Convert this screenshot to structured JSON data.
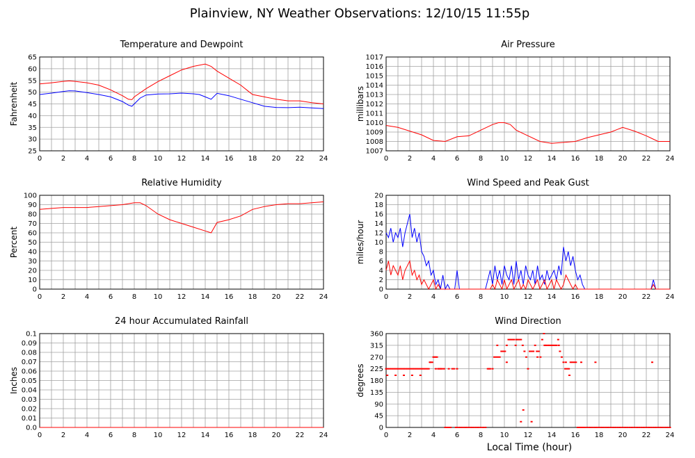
{
  "title": "Plainview, NY Weather Observations: 12/10/15 11:55p",
  "xlabel": "Local Time (hour)",
  "x_ticks": [
    "0",
    "2",
    "4",
    "6",
    "8",
    "10",
    "12",
    "14",
    "16",
    "18",
    "20",
    "22",
    "24"
  ],
  "colors": {
    "red": "#ff0000",
    "blue": "#0000ff",
    "grid": "#a0a0a0",
    "axis": "#000000"
  },
  "chart_data": [
    {
      "type": "line",
      "title": "Temperature and Dewpoint",
      "ylabel": "Fahrenheit",
      "xlim": [
        0,
        24
      ],
      "ylim": [
        25,
        65
      ],
      "grid": true,
      "y_ticks": [
        "25",
        "30",
        "35",
        "40",
        "45",
        "50",
        "55",
        "60",
        "65"
      ],
      "series": [
        {
          "color": "#ff0000",
          "x": [
            0,
            1,
            2,
            2.5,
            3,
            4,
            5,
            6,
            7,
            7.5,
            7.8,
            8,
            9,
            10,
            11,
            12,
            13,
            14,
            14.5,
            15,
            16,
            17,
            17.5,
            18,
            19,
            20,
            21,
            22,
            23,
            24
          ],
          "y": [
            53.5,
            54,
            54.6,
            54.8,
            54.6,
            54,
            53,
            51,
            48.5,
            47,
            46.8,
            48,
            51.5,
            54.5,
            57,
            59.5,
            61,
            62,
            61,
            59,
            56,
            53,
            51,
            49,
            48,
            47,
            46.3,
            46.3,
            45.5,
            45
          ]
        },
        {
          "color": "#0000ff",
          "x": [
            0,
            1,
            2,
            2.5,
            3,
            4,
            5,
            6,
            7,
            7.5,
            7.8,
            8,
            8.5,
            9,
            10,
            11,
            12,
            13,
            13.5,
            14,
            14.5,
            15,
            15.5,
            16,
            17,
            18,
            19,
            20,
            21,
            22,
            23,
            24
          ],
          "y": [
            49,
            49.6,
            50.3,
            50.6,
            50.5,
            49.8,
            49,
            48,
            46,
            44.5,
            44,
            45,
            47.5,
            48.8,
            49.2,
            49.3,
            49.6,
            49.3,
            49,
            48,
            47,
            49.5,
            49,
            48.5,
            47,
            45.5,
            44,
            43.5,
            43.4,
            43.6,
            43.3,
            43
          ]
        }
      ]
    },
    {
      "type": "line",
      "title": "Air Pressure",
      "ylabel": "millibars",
      "xlim": [
        0,
        24
      ],
      "ylim": [
        1007,
        1017
      ],
      "grid": true,
      "y_ticks": [
        "1007",
        "1008",
        "1009",
        "1010",
        "1011",
        "1012",
        "1013",
        "1014",
        "1015",
        "1016",
        "1017"
      ],
      "series": [
        {
          "color": "#ff0000",
          "x": [
            0,
            1,
            2,
            3,
            4,
            5,
            6,
            7,
            8,
            9,
            9.5,
            10,
            10.5,
            11,
            12,
            13,
            14,
            15,
            16,
            17,
            18,
            19,
            20,
            21,
            22,
            22.5,
            23,
            24
          ],
          "y": [
            1009.7,
            1009.5,
            1009.1,
            1008.7,
            1008.1,
            1008,
            1008.5,
            1008.6,
            1009.2,
            1009.8,
            1010,
            1010,
            1009.8,
            1009.2,
            1008.6,
            1008,
            1007.8,
            1007.9,
            1008,
            1008.4,
            1008.7,
            1009,
            1009.5,
            1009.1,
            1008.6,
            1008.3,
            1008,
            1008
          ]
        }
      ]
    },
    {
      "type": "line",
      "title": "Relative Humidity",
      "ylabel": "Percent",
      "xlim": [
        0,
        24
      ],
      "ylim": [
        0,
        100
      ],
      "grid": true,
      "y_ticks": [
        "0",
        "10",
        "20",
        "30",
        "40",
        "50",
        "60",
        "70",
        "80",
        "90",
        "100"
      ],
      "series": [
        {
          "color": "#ff0000",
          "x": [
            0,
            1,
            2,
            3,
            4,
            5,
            6,
            7,
            8,
            8.5,
            9,
            10,
            11,
            12,
            13,
            14,
            14.5,
            15,
            16,
            17,
            18,
            19,
            20,
            21,
            22,
            23,
            24
          ],
          "y": [
            85,
            86,
            87,
            87,
            87,
            88,
            89,
            90,
            92,
            92,
            89,
            80,
            74,
            70,
            66,
            62,
            60,
            71,
            74,
            78,
            85,
            88,
            90,
            91,
            91,
            92,
            93
          ]
        }
      ]
    },
    {
      "type": "line",
      "title": "Wind Speed and Peak Gust",
      "ylabel": "miles/hour",
      "xlim": [
        0,
        24
      ],
      "ylim": [
        0,
        20
      ],
      "grid": true,
      "y_ticks": [
        "0",
        "2",
        "4",
        "6",
        "8",
        "10",
        "12",
        "14",
        "16",
        "18",
        "20"
      ],
      "series": [
        {
          "color": "#0000ff",
          "x": [
            0,
            0.2,
            0.4,
            0.6,
            0.8,
            1,
            1.2,
            1.4,
            1.6,
            1.8,
            2,
            2.2,
            2.4,
            2.6,
            2.8,
            3,
            3.2,
            3.4,
            3.6,
            3.8,
            4,
            4.2,
            4.4,
            4.6,
            4.8,
            5,
            5.2,
            5.4,
            5.6,
            5.8,
            6,
            6.2,
            8.4,
            8.6,
            8.8,
            9,
            9.2,
            9.4,
            9.6,
            9.8,
            10,
            10.2,
            10.4,
            10.6,
            10.8,
            11,
            11.2,
            11.4,
            11.6,
            11.8,
            12,
            12.2,
            12.4,
            12.6,
            12.8,
            13,
            13.2,
            13.4,
            13.6,
            13.8,
            14,
            14.2,
            14.4,
            14.6,
            14.8,
            15,
            15.2,
            15.4,
            15.6,
            15.8,
            16,
            16.2,
            16.4,
            16.6,
            16.8,
            17,
            22.4,
            22.6,
            22.8,
            24
          ],
          "y": [
            12,
            11,
            13,
            10,
            12,
            11,
            13,
            9,
            12,
            14,
            16,
            11,
            13,
            10,
            12,
            8,
            7,
            5,
            6,
            3,
            4,
            1,
            2,
            0,
            3,
            0,
            1,
            0,
            0,
            0,
            4,
            0,
            0,
            2,
            4,
            1,
            5,
            2,
            4,
            1,
            5,
            3,
            2,
            5,
            1,
            6,
            2,
            4,
            1,
            5,
            3,
            2,
            4,
            1,
            5,
            2,
            3,
            1,
            4,
            2,
            3,
            4,
            2,
            5,
            3,
            9,
            6,
            8,
            5,
            7,
            4,
            2,
            3,
            1,
            0,
            0,
            0,
            2,
            0,
            0
          ]
        },
        {
          "color": "#ff0000",
          "x": [
            0,
            0.2,
            0.4,
            0.6,
            0.8,
            1,
            1.2,
            1.4,
            1.6,
            1.8,
            2,
            2.2,
            2.4,
            2.6,
            2.8,
            3,
            3.2,
            3.4,
            3.6,
            3.8,
            4,
            4.2,
            4.4,
            4.6,
            4.8,
            5,
            8.8,
            9,
            9.2,
            9.4,
            9.6,
            9.8,
            10,
            10.2,
            10.4,
            10.6,
            10.8,
            11,
            11.2,
            11.4,
            11.6,
            11.8,
            12,
            12.2,
            12.4,
            12.6,
            12.8,
            13,
            13.2,
            13.4,
            13.6,
            13.8,
            14,
            14.2,
            14.4,
            14.6,
            14.8,
            15,
            15.2,
            15.4,
            15.6,
            15.8,
            16,
            16.2,
            16.4,
            16.6,
            17,
            22.4,
            22.6,
            22.8,
            24
          ],
          "y": [
            4,
            6,
            3,
            5,
            4,
            3,
            5,
            2,
            4,
            5,
            6,
            3,
            4,
            2,
            3,
            1,
            2,
            1,
            0,
            1,
            2,
            0,
            1,
            0,
            0,
            0,
            0,
            1,
            0,
            2,
            1,
            0,
            2,
            0,
            1,
            2,
            0,
            1,
            2,
            0,
            1,
            0,
            2,
            1,
            0,
            1,
            2,
            0,
            1,
            2,
            0,
            1,
            2,
            0,
            2,
            1,
            0,
            1,
            3,
            2,
            1,
            0,
            1,
            0,
            0,
            0,
            0,
            0,
            1,
            0,
            0
          ]
        }
      ]
    },
    {
      "type": "line",
      "title": "24 hour Accumulated Rainfall",
      "ylabel": "Inches",
      "xlim": [
        0,
        24
      ],
      "ylim": [
        0,
        0.1
      ],
      "grid": true,
      "y_ticks": [
        "0.0",
        "0.01",
        "0.02",
        "0.03",
        "0.04",
        "0.05",
        "0.06",
        "0.07",
        "0.08",
        "0.09",
        "0.1"
      ],
      "series": [
        {
          "color": "#ff0000",
          "x": [
            0,
            24
          ],
          "y": [
            0,
            0
          ]
        }
      ]
    },
    {
      "type": "scatter",
      "title": "Wind Direction",
      "ylabel": "degrees",
      "xlim": [
        0,
        24
      ],
      "ylim": [
        0,
        360
      ],
      "grid": true,
      "y_ticks": [
        "0",
        "45",
        "90",
        "135",
        "180",
        "225",
        "270",
        "315",
        "360"
      ],
      "series": [
        {
          "color": "#ff0000",
          "x": [
            0,
            0.15,
            0.3,
            0.45,
            0.6,
            0.75,
            0.9,
            1.05,
            1.2,
            1.35,
            1.5,
            1.65,
            1.8,
            1.95,
            2.1,
            2.25,
            2.4,
            2.55,
            2.7,
            2.85,
            3,
            3.15,
            3.3,
            3.45,
            3.6,
            3.75,
            3.9,
            4,
            4.1,
            4.2,
            4.3,
            4.45,
            4.6,
            4.75,
            4.9,
            5.0,
            5.15,
            5.3,
            5.45,
            5.6,
            5.75,
            5.9,
            6,
            6.2,
            6.4,
            6.6,
            6.8,
            7,
            7.2,
            7.4,
            7.6,
            7.8,
            8,
            8.2,
            8.4,
            8.6,
            8.8,
            9,
            9.15,
            9.3,
            9.45,
            9.6,
            9.75,
            9.9,
            10.05,
            10.2,
            10.35,
            10.5,
            10.65,
            10.8,
            10.95,
            11.1,
            11.25,
            11.4,
            11.55,
            11.7,
            11.85,
            12,
            12.15,
            12.3,
            12.45,
            12.6,
            12.75,
            12.9,
            13.05,
            13.2,
            13.35,
            13.5,
            13.65,
            13.8,
            13.95,
            14.1,
            14.25,
            14.4,
            14.55,
            14.7,
            14.85,
            15,
            15.15,
            15.3,
            15.45,
            15.6,
            15.75,
            15.9,
            16.05,
            16.2,
            16.35,
            16.5,
            16.65,
            16.8,
            17,
            17.2,
            17.4,
            17.6,
            17.8,
            18,
            18.2,
            18.4,
            18.6,
            18.8,
            19,
            19.2,
            19.4,
            19.6,
            19.8,
            20,
            20.2,
            20.4,
            20.6,
            20.8,
            21,
            21.2,
            21.4,
            21.6,
            21.8,
            22,
            22.2,
            22.4,
            22.6,
            22.8,
            23,
            23.2,
            23.4,
            23.6,
            23.8,
            24,
            0.1,
            0.8,
            1.5,
            2.2,
            2.9,
            3.7,
            4.2,
            4.4,
            4.6,
            5.3,
            6.0,
            8.7,
            9.4,
            10.2,
            11.0,
            11.4,
            11.6,
            12.3,
            12.8,
            13.4,
            14.6,
            15.2,
            15.5,
            16.5,
            17.7,
            22.5
          ],
          "y": [
            225,
            225,
            225,
            225,
            225,
            225,
            225,
            225,
            225,
            225,
            225,
            225,
            225,
            225,
            225,
            225,
            225,
            225,
            225,
            225,
            225,
            225,
            225,
            225,
            225,
            250,
            250,
            270,
            270,
            270,
            270,
            225,
            225,
            225,
            225,
            0,
            0,
            0,
            0,
            225,
            225,
            0,
            0,
            0,
            0,
            0,
            0,
            0,
            0,
            0,
            0,
            0,
            0,
            0,
            0,
            225,
            225,
            225,
            270,
            270,
            270,
            270,
            292,
            292,
            292,
            315,
            337,
            337,
            337,
            337,
            315,
            337,
            337,
            337,
            315,
            292,
            270,
            225,
            292,
            292,
            292,
            315,
            292,
            292,
            270,
            337,
            360,
            315,
            315,
            315,
            315,
            315,
            315,
            315,
            337,
            292,
            270,
            250,
            225,
            225,
            225,
            250,
            250,
            250,
            250,
            0,
            0,
            0,
            0,
            0,
            0,
            0,
            0,
            0,
            0,
            0,
            0,
            0,
            0,
            0,
            0,
            0,
            0,
            0,
            0,
            0,
            0,
            0,
            0,
            0,
            0,
            0,
            0,
            0,
            0,
            0,
            0,
            0,
            0,
            0,
            0,
            0,
            0,
            0,
            0,
            0,
            200,
            200,
            200,
            200,
            200,
            250,
            225,
            225,
            225,
            225,
            225,
            225,
            315,
            250,
            337,
            22,
            67,
            22,
            270,
            315,
            315,
            250,
            200,
            250,
            250,
            250
          ]
        }
      ]
    }
  ]
}
